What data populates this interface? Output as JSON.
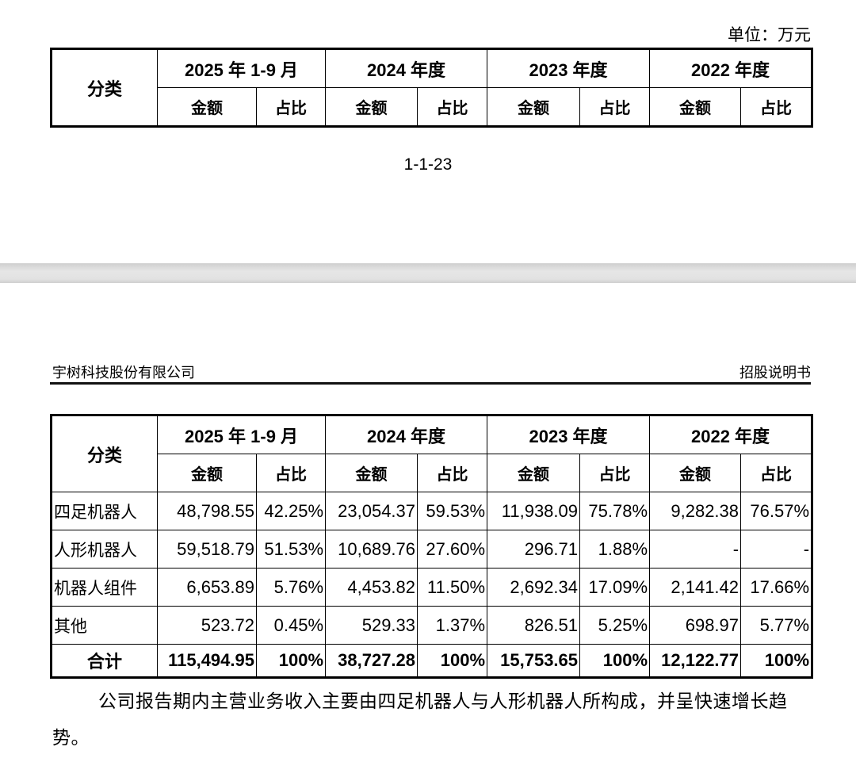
{
  "page1": {
    "unit": "单位：万元",
    "page_number": "1-1-23"
  },
  "page2": {
    "header_left": "宇树科技股份有限公司",
    "header_right": "招股说明书",
    "paragraph": "公司报告期内主营业务收入主要由四足机器人与人形机器人所构成，并呈快速增长趋势。"
  },
  "table": {
    "category_header": "分类",
    "periods": [
      "2025 年 1-9 月",
      "2024 年度",
      "2023 年度",
      "2022 年度"
    ],
    "amount_label": "金额",
    "ratio_label": "占比",
    "rows": [
      {
        "name": "四足机器人",
        "values": [
          "48,798.55",
          "42.25%",
          "23,054.37",
          "59.53%",
          "11,938.09",
          "75.78%",
          "9,282.38",
          "76.57%"
        ]
      },
      {
        "name": "人形机器人",
        "values": [
          "59,518.79",
          "51.53%",
          "10,689.76",
          "27.60%",
          "296.71",
          "1.88%",
          "-",
          "-"
        ]
      },
      {
        "name": "机器人组件",
        "values": [
          "6,653.89",
          "5.76%",
          "4,453.82",
          "11.50%",
          "2,692.34",
          "17.09%",
          "2,141.42",
          "17.66%"
        ]
      },
      {
        "name": "其他",
        "values": [
          "523.72",
          "0.45%",
          "529.33",
          "1.37%",
          "826.51",
          "5.25%",
          "698.97",
          "5.77%"
        ]
      }
    ],
    "total": {
      "name": "合计",
      "values": [
        "115,494.95",
        "100%",
        "38,727.28",
        "100%",
        "15,753.65",
        "100%",
        "12,122.77",
        "100%"
      ]
    }
  }
}
